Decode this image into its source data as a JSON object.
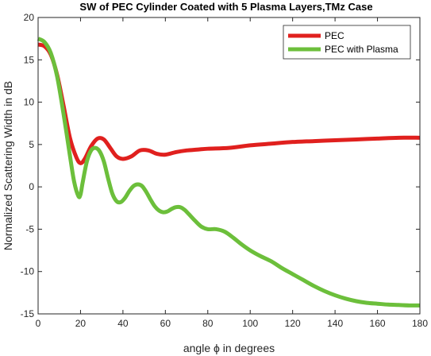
{
  "chart_data": {
    "type": "line",
    "title": "SW of PEC Cylinder Coated with 5 Plasma Layers,TMz Case",
    "xlabel": "angle ϕ in degrees",
    "ylabel": "Normalized Scattering Width in dB",
    "xlim": [
      0,
      180
    ],
    "ylim": [
      -15,
      20
    ],
    "xticks": [
      0,
      20,
      40,
      60,
      80,
      100,
      120,
      140,
      160,
      180
    ],
    "yticks": [
      -15,
      -10,
      -5,
      0,
      5,
      10,
      15,
      20
    ],
    "grid": false,
    "legend_position": "top-right",
    "series": [
      {
        "name": "PEC",
        "color": "#e0201e",
        "x": [
          0,
          3,
          6,
          9,
          12,
          15,
          18,
          20,
          22,
          25,
          28,
          31,
          34,
          37,
          40,
          44,
          48,
          52,
          56,
          60,
          65,
          70,
          75,
          80,
          90,
          100,
          110,
          120,
          130,
          140,
          150,
          160,
          170,
          180
        ],
        "y": [
          16.8,
          16.6,
          15.6,
          13.2,
          9.6,
          5.8,
          3.5,
          2.8,
          3.3,
          4.8,
          5.7,
          5.6,
          4.6,
          3.6,
          3.3,
          3.6,
          4.3,
          4.3,
          3.9,
          3.8,
          4.1,
          4.3,
          4.4,
          4.5,
          4.6,
          4.9,
          5.1,
          5.3,
          5.4,
          5.5,
          5.6,
          5.7,
          5.8,
          5.8
        ]
      },
      {
        "name": "PEC with Plasma",
        "color": "#6cbf3b",
        "x": [
          0,
          3,
          6,
          9,
          12,
          15,
          17,
          19,
          20,
          21,
          23,
          25,
          27,
          29,
          31,
          33,
          35,
          37,
          39,
          41,
          43,
          45,
          47,
          49,
          51,
          53,
          55,
          57,
          59,
          61,
          63,
          65,
          67,
          69,
          71,
          74,
          77,
          80,
          84,
          88,
          92,
          96,
          100,
          105,
          110,
          115,
          120,
          125,
          130,
          135,
          140,
          145,
          150,
          155,
          160,
          165,
          170,
          175,
          180
        ],
        "y": [
          17.5,
          17.1,
          15.8,
          13.0,
          8.6,
          3.7,
          0.6,
          -1.1,
          -0.9,
          0.5,
          3.0,
          4.3,
          4.6,
          4.2,
          3.0,
          1.0,
          -0.8,
          -1.7,
          -1.8,
          -1.3,
          -0.5,
          0.1,
          0.3,
          0.1,
          -0.6,
          -1.5,
          -2.3,
          -2.8,
          -3.0,
          -2.9,
          -2.6,
          -2.4,
          -2.4,
          -2.7,
          -3.2,
          -4.0,
          -4.7,
          -5.0,
          -5.0,
          -5.3,
          -6.0,
          -6.8,
          -7.5,
          -8.2,
          -8.8,
          -9.6,
          -10.3,
          -11.0,
          -11.7,
          -12.3,
          -12.8,
          -13.2,
          -13.5,
          -13.7,
          -13.8,
          -13.9,
          -13.95,
          -14.0,
          -14.0
        ]
      }
    ]
  }
}
